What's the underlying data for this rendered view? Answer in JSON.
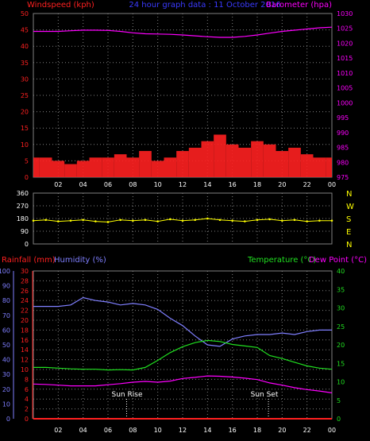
{
  "header": {
    "left_title": "Windspeed (kph)",
    "center_title": "24 hour graph data : 11 October 2016",
    "right_title": "Barometer (hpa)"
  },
  "colors": {
    "background": "#000000",
    "grid": "#808080",
    "red": "#ff2020",
    "white": "#ffffff",
    "green": "#00ff00",
    "magenta": "#ff00ff",
    "yellow": "#ffff00",
    "blue": "#3a3aff",
    "light_blue": "#7f7fff",
    "green_line": "#20e020",
    "rain_red": "#ff2020"
  },
  "x_ticks": [
    "02",
    "04",
    "06",
    "08",
    "10",
    "12",
    "14",
    "16",
    "18",
    "20",
    "22",
    "00"
  ],
  "wind_dir_labels": [
    "N",
    "W",
    "S",
    "E",
    "N"
  ],
  "bottom_headers": {
    "rainfall": "Rainfall (mm)",
    "humidity": "Humidity (%)",
    "temperature": "Temperature (°C)",
    "dewpoint": "Dew Point (°C)"
  },
  "annotations": {
    "sunrise": "Sun Rise",
    "sunset": "Sun Set"
  },
  "chart_data": [
    {
      "type": "line",
      "title": "24 hour graph data : 11 October 2016",
      "x": [
        "00",
        "01",
        "02",
        "03",
        "04",
        "05",
        "06",
        "07",
        "08",
        "09",
        "10",
        "11",
        "12",
        "13",
        "14",
        "15",
        "16",
        "17",
        "18",
        "19",
        "20",
        "21",
        "22",
        "23",
        "24"
      ],
      "xticklabels": [
        "02",
        "04",
        "06",
        "08",
        "10",
        "12",
        "14",
        "16",
        "18",
        "20",
        "22",
        "00"
      ],
      "axes": {
        "left": {
          "label": "Windspeed (kph)",
          "ylim": [
            0,
            50
          ],
          "ticks": [
            0,
            5,
            10,
            15,
            20,
            25,
            30,
            35,
            40,
            45,
            50
          ]
        },
        "right": {
          "label": "Barometer (hpa)",
          "ylim": [
            975,
            1030
          ],
          "ticks": [
            975,
            980,
            985,
            990,
            995,
            1000,
            1005,
            1010,
            1015,
            1020,
            1025,
            1030
          ]
        }
      },
      "series": [
        {
          "name": "Windspeed (kph)",
          "axis": "left",
          "style": "bar",
          "color": "#ff2020",
          "values": [
            6,
            6,
            5,
            4,
            5,
            6,
            6,
            7,
            6,
            8,
            5,
            6,
            8,
            9,
            11,
            13,
            10,
            9,
            11,
            10,
            8,
            9,
            7,
            6,
            6
          ]
        },
        {
          "name": "Barometer (hpa)",
          "axis": "right",
          "style": "line",
          "color": "#ff00ff",
          "values": [
            1024,
            1024,
            1024,
            1024.2,
            1024.4,
            1024.4,
            1024.3,
            1024,
            1023.5,
            1023.2,
            1023.1,
            1023,
            1022.8,
            1022.5,
            1022.2,
            1022,
            1022,
            1022.3,
            1022.8,
            1023.4,
            1024,
            1024.4,
            1024.8,
            1025.2,
            1025.4
          ]
        }
      ]
    },
    {
      "type": "scatter",
      "ylim": [
        0,
        360
      ],
      "yticks": [
        0,
        90,
        180,
        270,
        360
      ],
      "right_labels": [
        "N",
        "W",
        "S",
        "E",
        "N"
      ],
      "series": [
        {
          "name": "Wind direction",
          "color": "#ffff00",
          "x": [
            0,
            1,
            2,
            3,
            4,
            5,
            6,
            7,
            8,
            9,
            10,
            11,
            12,
            13,
            14,
            15,
            16,
            17,
            18,
            19,
            20,
            21,
            22,
            23,
            24
          ],
          "values": [
            165,
            170,
            160,
            165,
            170,
            160,
            155,
            170,
            165,
            170,
            160,
            175,
            165,
            170,
            180,
            170,
            165,
            160,
            170,
            175,
            165,
            170,
            160,
            165,
            165
          ]
        }
      ]
    },
    {
      "type": "line",
      "xticklabels": [
        "02",
        "04",
        "06",
        "08",
        "10",
        "12",
        "14",
        "16",
        "18",
        "20",
        "22",
        "00"
      ],
      "axes": {
        "left_outer": {
          "label": "Humidity (%)",
          "ylim": [
            0,
            100
          ],
          "ticks": [
            0,
            10,
            20,
            30,
            40,
            50,
            60,
            70,
            80,
            90,
            100
          ]
        },
        "left_inner": {
          "label": "Rainfall (mm)",
          "ylim": [
            0,
            30
          ],
          "ticks": [
            0,
            2,
            4,
            6,
            8,
            10,
            12,
            14,
            16,
            18,
            20,
            22,
            24,
            26,
            28,
            30
          ]
        },
        "right": {
          "label": "Temperature (°C)",
          "ylim": [
            0,
            40
          ],
          "ticks": [
            0,
            5,
            10,
            15,
            20,
            25,
            30,
            35,
            40
          ]
        }
      },
      "x": [
        0,
        1,
        2,
        3,
        4,
        5,
        6,
        7,
        8,
        9,
        10,
        11,
        12,
        13,
        14,
        15,
        16,
        17,
        18,
        19,
        20,
        21,
        22,
        23,
        24
      ],
      "series": [
        {
          "name": "Humidity (%)",
          "axis": "left_outer",
          "color": "#7f7fff",
          "values": [
            76,
            76,
            76,
            77,
            82,
            80,
            79,
            77,
            78,
            77,
            74,
            68,
            63,
            56,
            50,
            49,
            54,
            56,
            57,
            57,
            58,
            57,
            59,
            60,
            60
          ]
        },
        {
          "name": "Temperature (°C)",
          "axis": "right",
          "color": "#20e020",
          "values": [
            13.9,
            13.9,
            13.7,
            13.5,
            13.4,
            13.4,
            13.2,
            13.3,
            13.2,
            13.9,
            15.8,
            17.9,
            19.5,
            20.6,
            21.2,
            20.9,
            20.1,
            19.7,
            19.3,
            17.1,
            16.3,
            15.3,
            14.3,
            13.7,
            13.4
          ]
        },
        {
          "name": "Dew Point (°C)",
          "axis": "right",
          "color": "#ff00ff",
          "values": [
            9.4,
            9.3,
            9.1,
            8.9,
            8.9,
            8.9,
            9.2,
            9.5,
            9.9,
            10.1,
            9.9,
            10.2,
            10.9,
            11.2,
            11.6,
            11.5,
            11.3,
            11.0,
            10.6,
            9.7,
            9.1,
            8.4,
            7.9,
            7.5,
            7.0
          ]
        },
        {
          "name": "Rainfall (mm)",
          "axis": "left_inner",
          "color": "#ff2020",
          "values": [
            0,
            0,
            0,
            0,
            0,
            0,
            0,
            0,
            0,
            0,
            0,
            0,
            0,
            0,
            0,
            0,
            0,
            0,
            0,
            0,
            0,
            0,
            0,
            0,
            0
          ]
        }
      ],
      "sunrise_hour": 7.5,
      "sunset_hour": 18.9
    }
  ]
}
